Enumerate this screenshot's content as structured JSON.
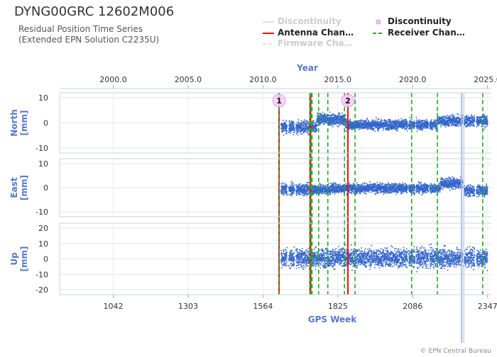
{
  "header": {
    "title": "DYNG00GRC 12602M006",
    "subtitle_line1": "Residual Position Time Series",
    "subtitle_line2": "(Extended EPN Solution C2235U)",
    "copyright": "© EPN Central Bureau"
  },
  "legend": [
    {
      "label": "Discontinuity",
      "symbol": "line",
      "color": "#cccccc",
      "style": "solid",
      "active": false
    },
    {
      "label": "Discontinuity",
      "symbol": "circle",
      "color": "#e48be4",
      "style": "marker",
      "active": true
    },
    {
      "label": "Antenna Chan…",
      "symbol": "line",
      "color": "#ee1111",
      "style": "solid",
      "active": true
    },
    {
      "label": "Receiver Chan…",
      "symbol": "line",
      "color": "#22aa22",
      "style": "dashed",
      "active": true
    },
    {
      "label": "Firmware Cha…",
      "symbol": "line",
      "color": "#cccccc",
      "style": "dashed",
      "active": false
    }
  ],
  "chart_data": {
    "type": "scatter",
    "top_axis": {
      "label": "Year",
      "ticks": [
        "2000.0",
        "2005.0",
        "2010.0",
        "2015.0",
        "2020.0",
        "2025.0"
      ],
      "tick_values": [
        2000.0,
        2005.0,
        2010.0,
        2015.0,
        2020.0,
        2025.0
      ]
    },
    "bottom_axis": {
      "label": "GPS Week",
      "ticks": [
        "1042",
        "1303",
        "1564",
        "1825",
        "2086",
        "2347"
      ],
      "tick_values": [
        1042,
        1303,
        1564,
        1825,
        2086,
        2347
      ],
      "range": [
        855,
        2360
      ]
    },
    "data_span_weeks": [
      1625,
      2345
    ],
    "data_gaps_weeks": [
      [
        1646,
        1652
      ],
      [
        1672,
        1677
      ],
      [
        2066,
        2070
      ],
      [
        2092,
        2096
      ],
      [
        2139,
        2143
      ],
      [
        2258,
        2264
      ],
      [
        2300,
        2306
      ]
    ],
    "panels": [
      {
        "name": "North",
        "ylabel": "North\n[mm]",
        "ylim": [
          -10,
          10
        ],
        "ticks": [
          "10",
          "0",
          "-10"
        ],
        "tick_values": [
          10,
          0,
          -10
        ],
        "segments": [
          {
            "from": 1625,
            "to": 1750,
            "mean": -1.5,
            "spread": 2.2
          },
          {
            "from": 1750,
            "to": 1850,
            "mean": 1.5,
            "spread": 2.2
          },
          {
            "from": 1850,
            "to": 2170,
            "mean": -0.5,
            "spread": 1.8
          },
          {
            "from": 2170,
            "to": 2345,
            "mean": 1.0,
            "spread": 2.0
          }
        ]
      },
      {
        "name": "East",
        "ylabel": "East\n[mm]",
        "ylim": [
          -10,
          10
        ],
        "ticks": [
          "10",
          "0",
          "-10"
        ],
        "tick_values": [
          10,
          0,
          -10
        ],
        "segments": [
          {
            "from": 1625,
            "to": 1800,
            "mean": -0.5,
            "spread": 2.0
          },
          {
            "from": 1800,
            "to": 2180,
            "mean": 0.0,
            "spread": 1.8
          },
          {
            "from": 2180,
            "to": 2260,
            "mean": 2.0,
            "spread": 2.0
          },
          {
            "from": 2260,
            "to": 2345,
            "mean": -1.0,
            "spread": 2.0
          }
        ]
      },
      {
        "name": "Up",
        "ylabel": "Up\n[mm]",
        "ylim": [
          -20,
          20
        ],
        "ticks": [
          "20",
          "10",
          "0",
          "-10",
          "-20"
        ],
        "tick_values": [
          20,
          10,
          0,
          -10,
          -20
        ],
        "segments": [
          {
            "from": 1625,
            "to": 2345,
            "mean": 1.0,
            "spread": 5.5
          }
        ]
      }
    ],
    "antenna_changes_weeks": [
      1620,
      1728,
      1730,
      1860
    ],
    "receiver_changes_weeks": [
      1620,
      1728,
      1732,
      1735,
      1758,
      1790,
      1848,
      1885,
      2082,
      2172,
      2330
    ],
    "discontinuities": [
      {
        "week": 1620,
        "label": "1"
      },
      {
        "week": 1860,
        "label": "2"
      }
    ],
    "outlier_spikes_weeks": [
      2255,
      2258,
      2264
    ],
    "series_color": "#3366cc"
  }
}
